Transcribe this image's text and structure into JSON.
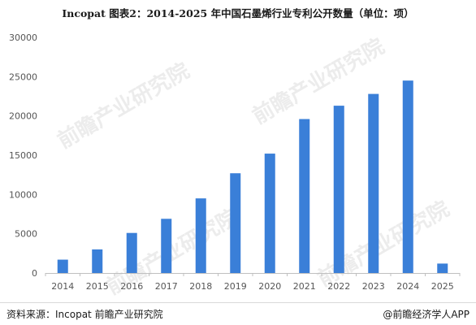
{
  "title": "Incopat  图表2：2014-2025 年中国石墨烯行业专利公开数量（单位：项）",
  "source": "资料来源：Incopat 前瞻产业研究院",
  "brand": "@前瞻经济学人APP",
  "watermark": "前瞻产业研究院",
  "colors": {
    "bar": "#3a7fd8",
    "axis": "#bfbfbf"
  },
  "chart_data": {
    "type": "bar",
    "categories": [
      "2014",
      "2015",
      "2016",
      "2017",
      "2018",
      "2019",
      "2020",
      "2021",
      "2022",
      "2023",
      "2024",
      "2025"
    ],
    "values": [
      1700,
      3000,
      5100,
      6900,
      9500,
      12700,
      15200,
      19600,
      21300,
      22800,
      24500,
      1200
    ],
    "ylim": [
      0,
      30000
    ],
    "yticks": [
      0,
      5000,
      10000,
      15000,
      20000,
      25000,
      30000
    ],
    "grid": false,
    "legend": "none"
  }
}
